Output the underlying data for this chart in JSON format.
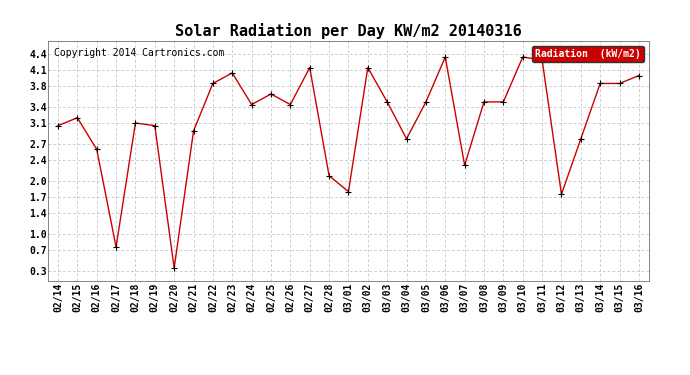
{
  "title": "Solar Radiation per Day KW/m2 20140316",
  "copyright_text": "Copyright 2014 Cartronics.com",
  "legend_label": "Radiation  (kW/m2)",
  "dates": [
    "02/14",
    "02/15",
    "02/16",
    "02/17",
    "02/18",
    "02/19",
    "02/20",
    "02/21",
    "02/22",
    "02/23",
    "02/24",
    "02/25",
    "02/26",
    "02/27",
    "02/28",
    "03/01",
    "03/02",
    "03/03",
    "03/04",
    "03/05",
    "03/06",
    "03/07",
    "03/08",
    "03/09",
    "03/10",
    "03/11",
    "03/12",
    "03/13",
    "03/14",
    "03/15",
    "03/16"
  ],
  "values": [
    3.05,
    3.2,
    2.6,
    0.75,
    3.1,
    3.05,
    0.35,
    2.95,
    3.85,
    4.05,
    3.45,
    3.65,
    3.45,
    4.15,
    2.1,
    1.8,
    4.15,
    3.5,
    2.8,
    3.5,
    4.35,
    2.3,
    3.5,
    3.5,
    4.35,
    4.3,
    1.75,
    2.8,
    3.85,
    3.85,
    4.0
  ],
  "line_color": "#cc0000",
  "marker_color": "#000000",
  "bg_color": "#ffffff",
  "grid_color": "#bbbbbb",
  "yticks": [
    0.3,
    0.7,
    1.0,
    1.4,
    1.7,
    2.0,
    2.4,
    2.7,
    3.1,
    3.4,
    3.8,
    4.1,
    4.4
  ],
  "ylim": [
    0.1,
    4.65
  ],
  "legend_bg": "#cc0000",
  "legend_text_color": "#ffffff",
  "title_fontsize": 11,
  "copyright_fontsize": 7,
  "tick_fontsize": 7,
  "legend_fontsize": 7
}
